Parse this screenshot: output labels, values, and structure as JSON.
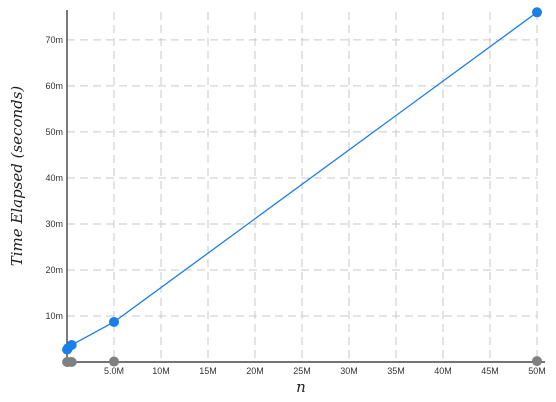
{
  "chart_data": {
    "type": "line",
    "title": "",
    "xlabel": "n",
    "ylabel": "Time Elapsed (seconds)",
    "xlim": [
      0,
      50000000
    ],
    "ylim": [
      0,
      75
    ],
    "grid": true,
    "x_ticks": [
      {
        "value": 5000000,
        "label": "5.0M"
      },
      {
        "value": 10000000,
        "label": "10M"
      },
      {
        "value": 15000000,
        "label": "15M"
      },
      {
        "value": 20000000,
        "label": "20M"
      },
      {
        "value": 25000000,
        "label": "25M"
      },
      {
        "value": 30000000,
        "label": "30M"
      },
      {
        "value": 35000000,
        "label": "35M"
      },
      {
        "value": 40000000,
        "label": "40M"
      },
      {
        "value": 45000000,
        "label": "45M"
      },
      {
        "value": 50000000,
        "label": "50M"
      }
    ],
    "y_ticks": [
      {
        "value": 10,
        "label": "10m"
      },
      {
        "value": 20,
        "label": "20m"
      },
      {
        "value": 30,
        "label": "30m"
      },
      {
        "value": 40,
        "label": "40m"
      },
      {
        "value": 50,
        "label": "50m"
      },
      {
        "value": 60,
        "label": "60m"
      },
      {
        "value": 70,
        "label": "70m"
      }
    ],
    "series": [
      {
        "color": "#1a7fe8",
        "line": true,
        "x": [
          10000,
          100000,
          500000,
          5000000,
          50000000
        ],
        "y": [
          2.7,
          3.0,
          3.7,
          8.7,
          76.0
        ]
      },
      {
        "color": "#808080",
        "line": false,
        "x": [
          10000,
          100000,
          500000,
          5000000,
          50000000
        ],
        "y": [
          0.0,
          0.0,
          0.0,
          0.1,
          0.2
        ]
      }
    ]
  }
}
